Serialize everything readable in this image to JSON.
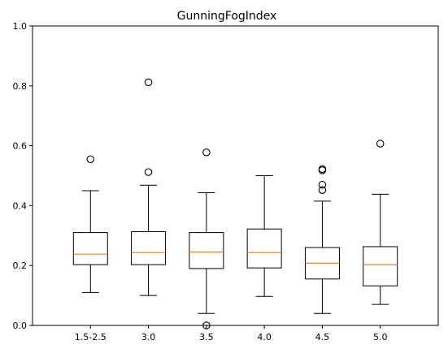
{
  "chart_data": {
    "type": "boxplot",
    "title": "GunningFogIndex",
    "xlabel": "",
    "ylabel": "",
    "ylim": [
      0,
      1.0
    ],
    "yticks": [
      0.0,
      0.2,
      0.4,
      0.6,
      0.8,
      1.0
    ],
    "ytick_labels": [
      "0.0",
      "0.2",
      "0.4",
      "0.6",
      "0.8",
      "1.0"
    ],
    "grid": false,
    "legend": "none",
    "categories": [
      "1.5-2.5",
      "3.0",
      "3.5",
      "4.0",
      "4.5",
      "5.0"
    ],
    "boxes": [
      {
        "category": "1.5-2.5",
        "whisker_low": 0.11,
        "q1": 0.203,
        "median": 0.238,
        "q3": 0.31,
        "whisker_high": 0.45,
        "fliers": [
          0.555
        ]
      },
      {
        "category": "3.0",
        "whisker_low": 0.1,
        "q1": 0.203,
        "median": 0.243,
        "q3": 0.313,
        "whisker_high": 0.468,
        "fliers": [
          0.512,
          0.812
        ]
      },
      {
        "category": "3.5",
        "whisker_low": 0.04,
        "q1": 0.19,
        "median": 0.245,
        "q3": 0.31,
        "whisker_high": 0.443,
        "fliers": [
          0.0,
          0.578
        ]
      },
      {
        "category": "4.0",
        "whisker_low": 0.097,
        "q1": 0.192,
        "median": 0.243,
        "q3": 0.322,
        "whisker_high": 0.5,
        "fliers": []
      },
      {
        "category": "4.5",
        "whisker_low": 0.04,
        "q1": 0.155,
        "median": 0.208,
        "q3": 0.26,
        "whisker_high": 0.415,
        "fliers": [
          0.452,
          0.47,
          0.518,
          0.522
        ]
      },
      {
        "category": "5.0",
        "whisker_low": 0.07,
        "q1": 0.132,
        "median": 0.203,
        "q3": 0.263,
        "whisker_high": 0.438,
        "fliers": [
          0.607
        ]
      }
    ],
    "colors": {
      "box": "#000000",
      "median": "#ff7f0e",
      "flier": "#000000",
      "background": "#ffffff"
    }
  }
}
